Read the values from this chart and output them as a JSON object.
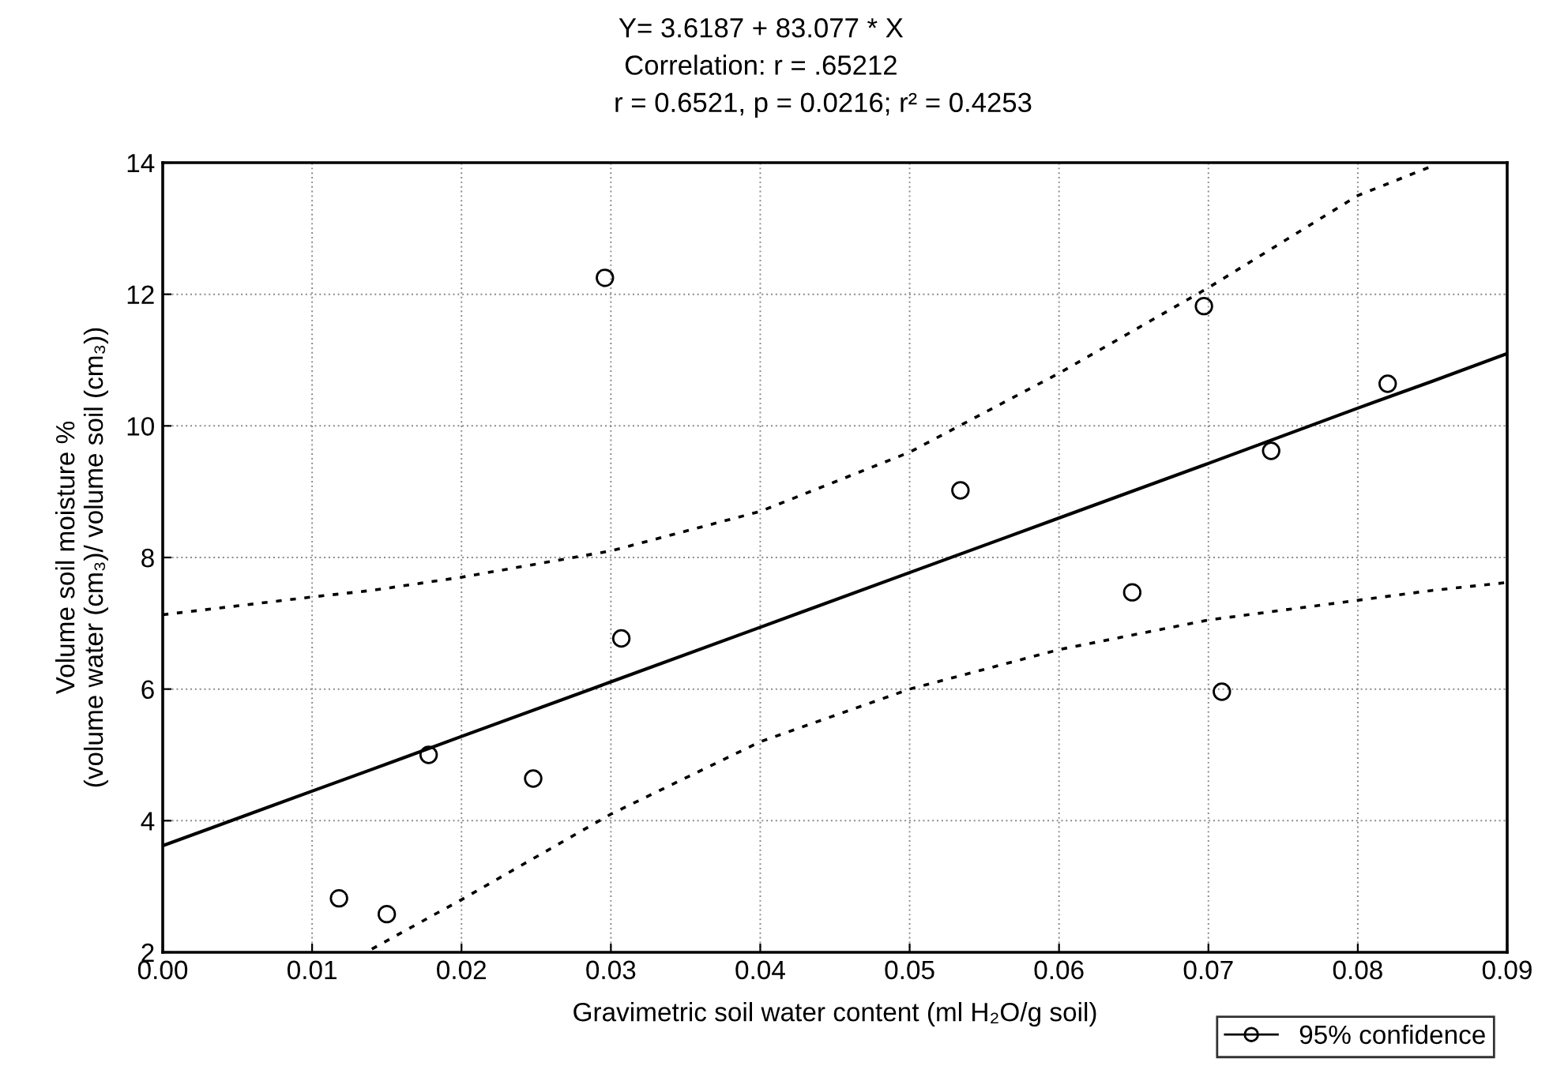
{
  "chart_data": {
    "type": "scatter",
    "title": "Y= 3.6187 + 83.077 * X",
    "subtitle": "Correlation: r = .65212",
    "annotations": [
      "r = 0.6521, p = 0.0216; r² = 0.4253"
    ],
    "xlabel": "Gravimetric soil water content (ml H₂O/g soil)",
    "ylabel": "Volume soil moisture %\n(volume water (cm₃)/ volume soil (cm₃))",
    "xlim": [
      0,
      0.09
    ],
    "ylim": [
      2,
      14
    ],
    "xticks": [
      {
        "value": 0,
        "label": "0.00"
      },
      {
        "value": 0.01,
        "label": "0.01"
      },
      {
        "value": 0.02,
        "label": "0.02"
      },
      {
        "value": 0.03,
        "label": "0.03"
      },
      {
        "value": 0.04,
        "label": "0.04"
      },
      {
        "value": 0.05,
        "label": "0.05"
      },
      {
        "value": 0.06,
        "label": "0.06"
      },
      {
        "value": 0.07,
        "label": "0.07"
      },
      {
        "value": 0.08,
        "label": "0.08"
      },
      {
        "value": 0.09,
        "label": "0.09"
      }
    ],
    "yticks": [
      2,
      4,
      6,
      8,
      10,
      12,
      14
    ],
    "grid": true,
    "legend": "bottom right",
    "series": [
      {
        "type": "scatter",
        "name": "95% confidence",
        "color": "#000000",
        "marker": "circle",
        "x": [
          0.0118,
          0.015,
          0.0178,
          0.0248,
          0.0296,
          0.0307,
          0.0534,
          0.0649,
          0.0697,
          0.0709,
          0.0742,
          0.082
        ],
        "values": [
          2.82,
          2.58,
          5.0,
          4.64,
          12.25,
          6.77,
          9.02,
          7.47,
          11.82,
          5.96,
          9.62,
          10.64
        ]
      },
      {
        "type": "line",
        "color": "#000000",
        "line_style": "solid",
        "x": [
          0,
          0.01,
          0.014,
          0.02,
          0.03,
          0.04,
          0.05,
          0.06,
          0.07,
          0.08,
          0.085,
          0.09
        ],
        "values": [
          3.62,
          4.45,
          4.78,
          5.28,
          6.11,
          6.94,
          7.77,
          8.6,
          9.43,
          10.27,
          10.68,
          11.1
        ]
      },
      {
        "type": "line",
        "color": "#000000",
        "line_style": "dotted",
        "x": [
          0.014,
          0.02,
          0.03,
          0.04,
          0.05,
          0.06,
          0.07,
          0.08,
          0.085,
          0.09
        ],
        "values": [
          2.05,
          2.8,
          4.1,
          5.2,
          6.0,
          6.6,
          7.05,
          7.35,
          7.5,
          7.62
        ]
      },
      {
        "type": "line",
        "color": "#000000",
        "line_style": "dotted",
        "x": [
          0,
          0.01,
          0.014,
          0.02,
          0.03,
          0.04,
          0.05,
          0.06,
          0.07,
          0.08,
          0.085
        ],
        "values": [
          7.13,
          7.4,
          7.5,
          7.7,
          8.1,
          8.7,
          9.6,
          10.8,
          12.1,
          13.5,
          13.95
        ]
      }
    ]
  }
}
